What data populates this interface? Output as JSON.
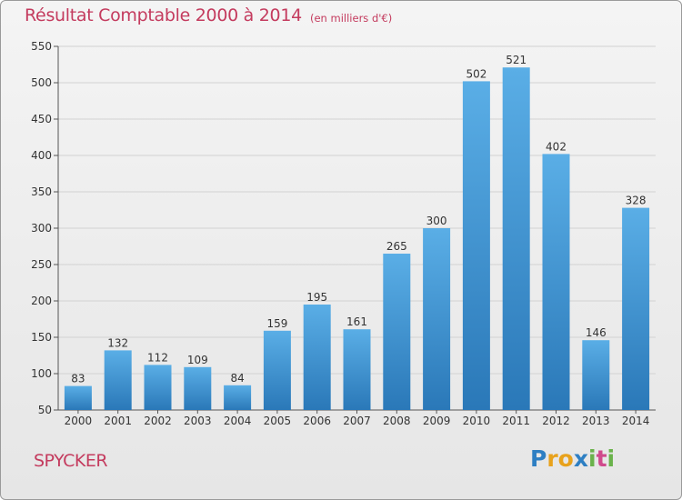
{
  "chart_data": {
    "type": "bar",
    "title": "Résultat Comptable 2000 à 2014",
    "subtitle": "(en milliers d'€)",
    "categories": [
      "2000",
      "2001",
      "2002",
      "2003",
      "2004",
      "2005",
      "2006",
      "2007",
      "2008",
      "2009",
      "2010",
      "2011",
      "2012",
      "2013",
      "2014"
    ],
    "values": [
      83,
      132,
      112,
      109,
      84,
      159,
      195,
      161,
      265,
      300,
      502,
      521,
      402,
      146,
      328
    ],
    "ylim": [
      50,
      550
    ],
    "yticks": [
      50,
      100,
      150,
      200,
      250,
      300,
      350,
      400,
      450,
      500,
      550
    ],
    "xlabel": "",
    "ylabel": "",
    "grid": true,
    "bar_color_top": "#5aaee6",
    "bar_color_bottom": "#2a78b8"
  },
  "location": "SPYCKER",
  "logo": {
    "letters": [
      "P",
      "r",
      "o",
      "x",
      "i",
      "t",
      "i"
    ],
    "colors": [
      "#2e7fc3",
      "#e8a21c",
      "#e8a21c",
      "#2e7fc3",
      "#6ab24b",
      "#d04a8c",
      "#6ab24b"
    ]
  }
}
